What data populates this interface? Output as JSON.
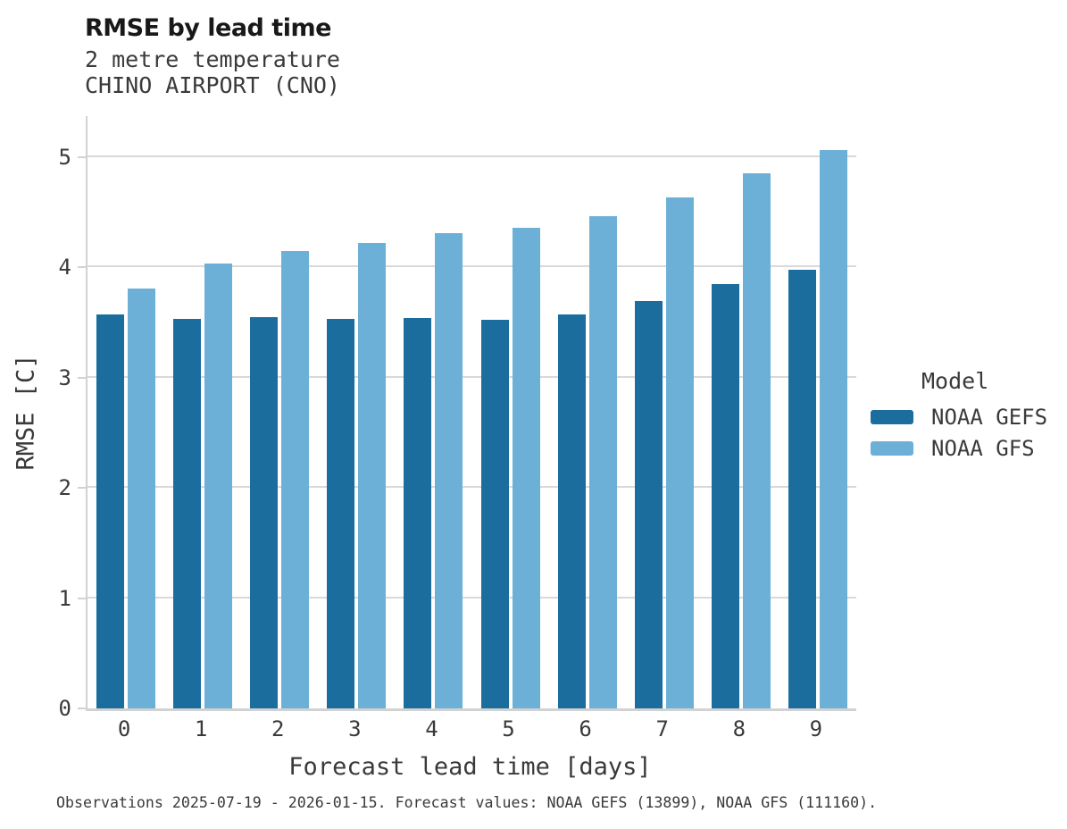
{
  "header": {
    "title": "RMSE by lead time",
    "subtitle_line1": "2 metre temperature",
    "subtitle_line2": "CHINO AIRPORT (CNO)"
  },
  "caption": "Observations 2025-07-19 - 2026-01-15. Forecast values: NOAA GEFS (13899), NOAA GFS (111160).",
  "legend": {
    "title": "Model",
    "entries": [
      {
        "label": "NOAA GEFS",
        "color": "#1B6D9E"
      },
      {
        "label": "NOAA GFS",
        "color": "#6CB0D8"
      }
    ]
  },
  "colors": {
    "gefs_dark_blue": "#1B6D9E",
    "gfs_light_blue": "#6CB0D8",
    "gridline_gray": "#D9D9D9",
    "axis_gray": "#D2D2D2",
    "text_gray": "#3A3A3A"
  },
  "chart_data": {
    "type": "bar",
    "title": "RMSE by lead time",
    "subtitle": [
      "2 metre temperature",
      "CHINO AIRPORT (CNO)"
    ],
    "xlabel": "Forecast lead time [days]",
    "ylabel": "RMSE [C]",
    "categories": [
      "0",
      "1",
      "2",
      "3",
      "4",
      "5",
      "6",
      "7",
      "8",
      "9"
    ],
    "series": [
      {
        "name": "NOAA GEFS",
        "color": "#1B6D9E",
        "values": [
          3.57,
          3.53,
          3.55,
          3.53,
          3.54,
          3.52,
          3.57,
          3.69,
          3.85,
          3.98
        ]
      },
      {
        "name": "NOAA GFS",
        "color": "#6CB0D8",
        "values": [
          3.81,
          4.03,
          4.15,
          4.22,
          4.31,
          4.36,
          4.46,
          4.63,
          4.85,
          5.06
        ]
      }
    ],
    "ylim": [
      0,
      5.37
    ],
    "yticks": [
      0,
      1,
      2,
      3,
      4,
      5
    ],
    "grid": true,
    "legend_position": "right-center"
  }
}
